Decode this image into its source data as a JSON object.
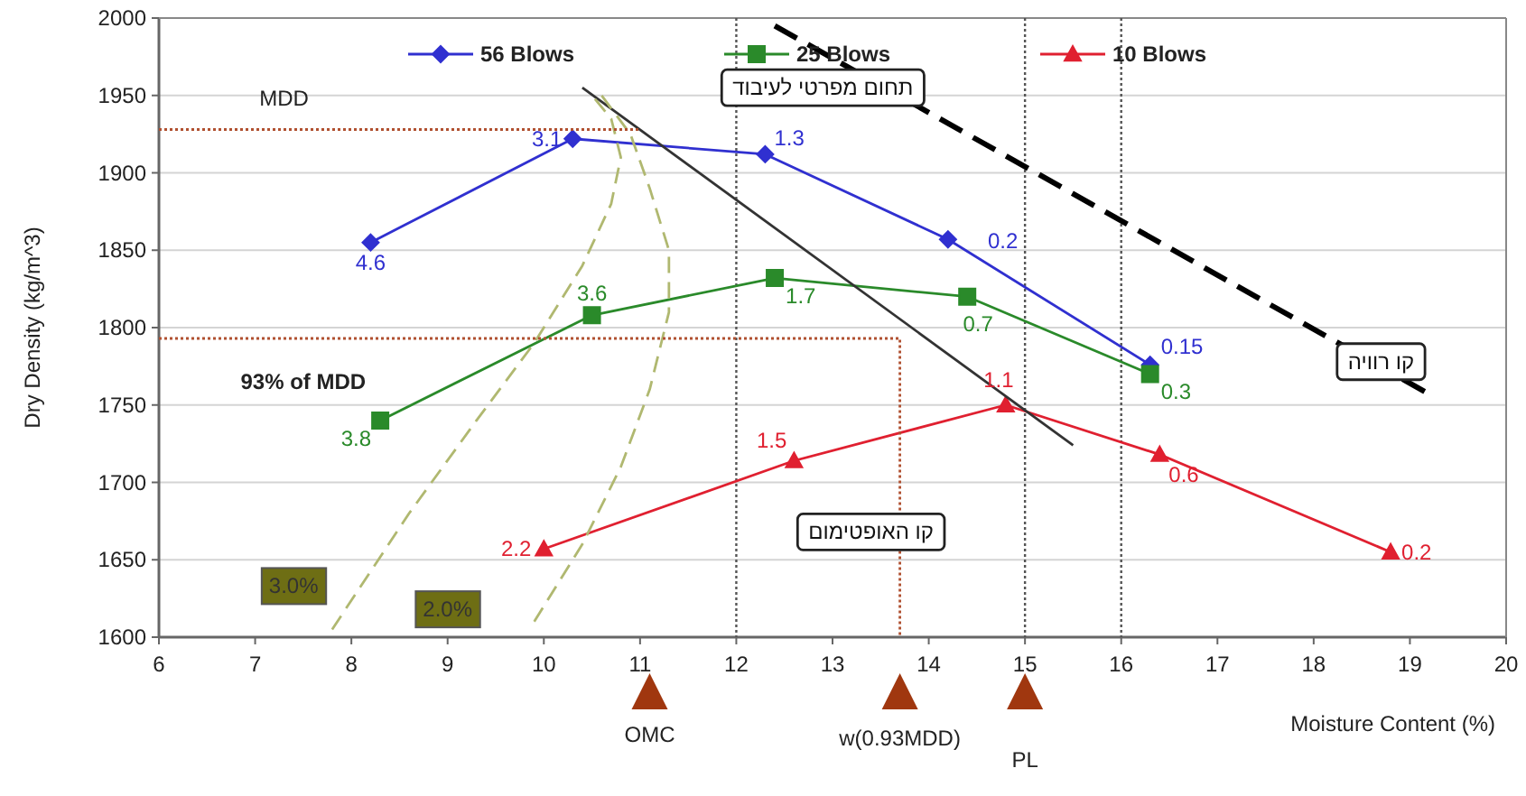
{
  "chart_data": {
    "type": "line",
    "xlabel": "Moisture Content (%)",
    "ylabel": "Dry Density (kg/m^3)",
    "xlim": [
      6,
      20
    ],
    "ylim": [
      1600,
      2000
    ],
    "xticks": [
      6,
      7,
      8,
      9,
      10,
      11,
      12,
      13,
      14,
      15,
      16,
      17,
      18,
      19,
      20
    ],
    "yticks": [
      1600,
      1650,
      1700,
      1750,
      1800,
      1850,
      1900,
      1950,
      2000
    ],
    "grid": "y",
    "legend": "top",
    "series": [
      {
        "name": "56 Blows",
        "color": "#3030d0",
        "marker": "diamond",
        "x": [
          8.2,
          10.3,
          12.3,
          14.2,
          16.3
        ],
        "values": [
          1855,
          1922,
          1912,
          1857,
          1776
        ]
      },
      {
        "name": "25 Blows",
        "color": "#2a8a2a",
        "marker": "square",
        "x": [
          8.3,
          10.5,
          12.4,
          14.4,
          16.3
        ],
        "values": [
          1740,
          1808,
          1832,
          1820,
          1770
        ]
      },
      {
        "name": "10 Blows",
        "color": "#e02030",
        "marker": "triangle",
        "x": [
          10.0,
          12.6,
          14.8,
          16.4,
          18.8
        ],
        "values": [
          1657,
          1714,
          1750,
          1718,
          1655
        ]
      },
      {
        "color": "#000000",
        "line_style": "dashed",
        "x": [
          12.4,
          19.2
        ],
        "values": [
          1995,
          1757
        ]
      },
      {
        "color": "#333333",
        "x": [
          10.4,
          15.5
        ],
        "values": [
          1955,
          1724
        ]
      },
      {
        "color": "#b0b870",
        "line_style": "dashed",
        "x": [
          7.8,
          8.6,
          9.3,
          9.9,
          10.4,
          10.7,
          10.8,
          10.7,
          10.5
        ],
        "values": [
          1605,
          1680,
          1740,
          1790,
          1840,
          1880,
          1910,
          1935,
          1950
        ]
      },
      {
        "color": "#b0b870",
        "line_style": "dashed",
        "x": [
          9.9,
          10.4,
          10.8,
          11.1,
          11.3,
          11.3,
          11.1,
          10.9,
          10.6
        ],
        "values": [
          1610,
          1660,
          1710,
          1760,
          1810,
          1850,
          1890,
          1925,
          1950
        ]
      },
      {
        "color": "#b05030",
        "line_style": "dotted",
        "x": [
          6,
          11
        ],
        "values": [
          1928,
          1928
        ]
      },
      {
        "color": "#b05030",
        "line_style": "dotted",
        "x": [
          6,
          13.7,
          13.7
        ],
        "values": [
          1793,
          1793,
          1600
        ]
      }
    ],
    "ref_lines": [
      {
        "axis": "x",
        "value": 12,
        "color": "#555555",
        "line_style": "dotted"
      },
      {
        "axis": "x",
        "value": 15,
        "color": "#555555",
        "line_style": "dotted"
      },
      {
        "axis": "x",
        "value": 16,
        "color": "#555555",
        "line_style": "dotted"
      }
    ],
    "annotations": [
      "MDD",
      "93% of MDD",
      {
        "text": "4.6",
        "x": 8.2,
        "y": 1855
      },
      {
        "text": "3.1",
        "x": 10.3,
        "y": 1922
      },
      {
        "text": "1.3",
        "x": 12.3,
        "y": 1912
      },
      {
        "text": "0.2",
        "x": 14.2,
        "y": 1857
      },
      {
        "text": "0.15",
        "x": 16.3,
        "y": 1776
      },
      {
        "text": "3.8",
        "x": 8.3,
        "y": 1740
      },
      {
        "text": "3.6",
        "x": 10.5,
        "y": 1808
      },
      {
        "text": "1.7",
        "x": 12.4,
        "y": 1832
      },
      {
        "text": "0.7",
        "x": 14.4,
        "y": 1820
      },
      {
        "text": "0.3",
        "x": 16.3,
        "y": 1770
      },
      {
        "text": "2.2",
        "x": 10.0,
        "y": 1657
      },
      {
        "text": "1.5",
        "x": 12.6,
        "y": 1714
      },
      {
        "text": "1.1",
        "x": 14.8,
        "y": 1750
      },
      {
        "text": "0.6",
        "x": 16.4,
        "y": 1718
      },
      {
        "text": "0.2",
        "x": 18.8,
        "y": 1655
      },
      {
        "text": "3.0%",
        "x": 7.4,
        "y": 1633
      },
      {
        "text": "2.0%",
        "x": 9.0,
        "y": 1618
      },
      "תחום מפרטי לעיבוד",
      {
        "text": "קו רוויה",
        "x": 18.7,
        "y": 1778
      },
      "קו האופטימום",
      "OMC",
      "w(0.93MDD)",
      "PL"
    ]
  }
}
